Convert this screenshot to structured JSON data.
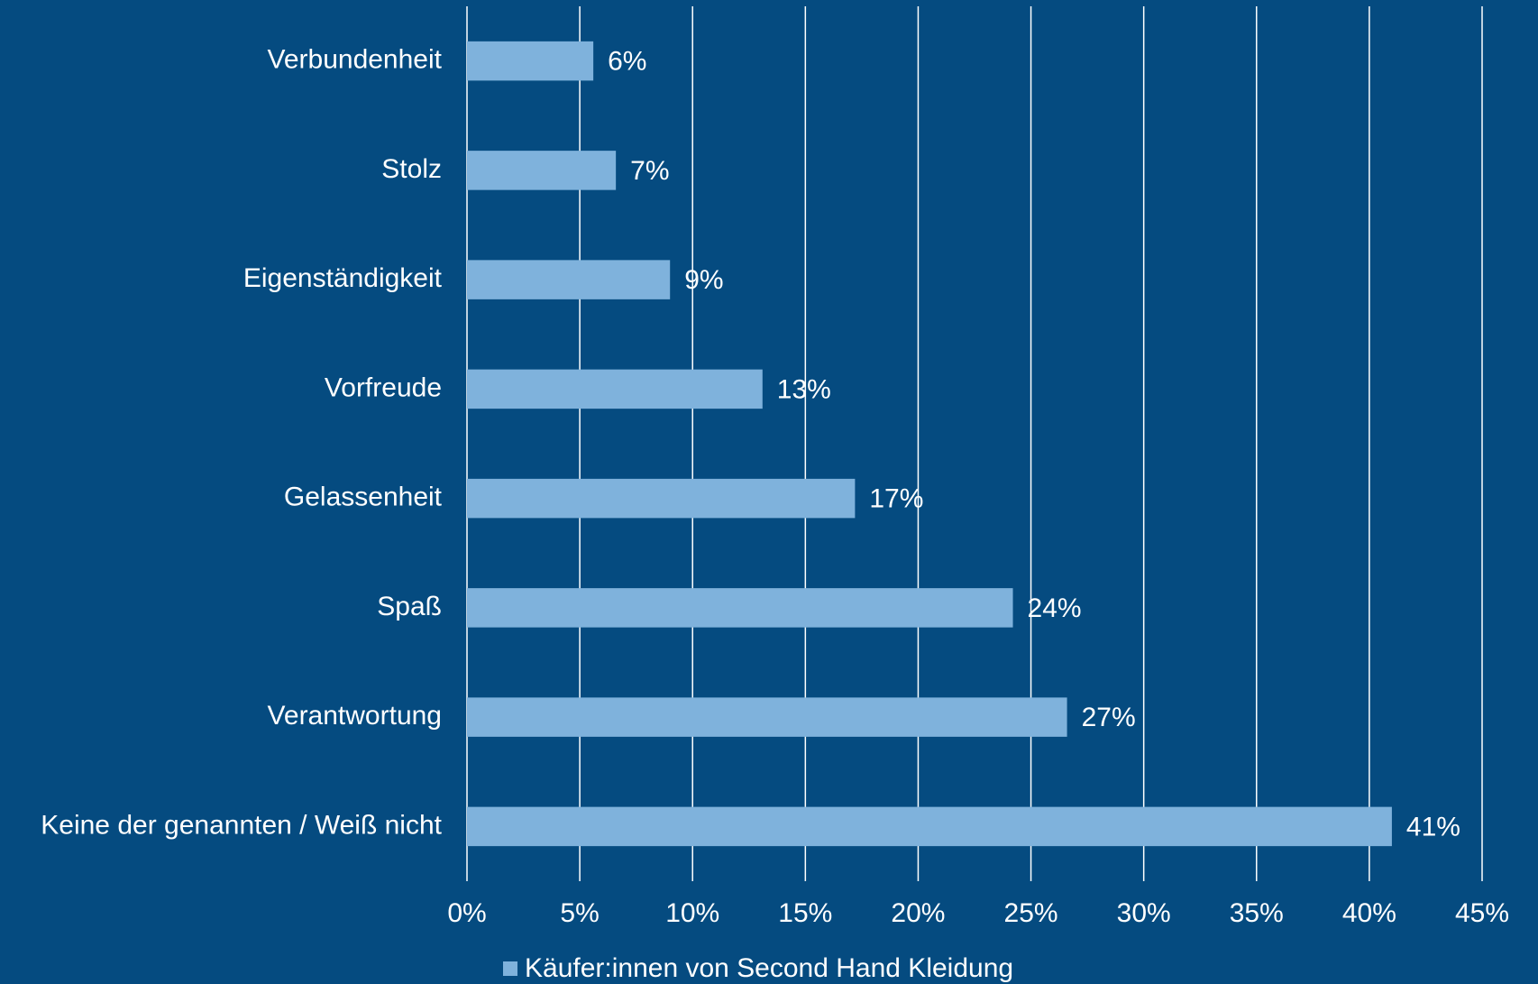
{
  "chart_data": {
    "type": "hbar",
    "categories": [
      "Verbundenheit",
      "Stolz",
      "Eigenständigkeit",
      "Vorfreude",
      "Gelassenheit",
      "Spaß",
      "Verantwortung",
      "Keine der genannten / Weiß nicht"
    ],
    "series": [
      {
        "name": "Käufer:innen von Second Hand Kleidung",
        "color": "#7fb2dc",
        "values": [
          5.6,
          6.6,
          9,
          13.1,
          17.2,
          24.2,
          26.6,
          41
        ],
        "value_labels": [
          "6%",
          "7%",
          "9%",
          "13%",
          "17%",
          "24%",
          "27%",
          "41%"
        ]
      }
    ],
    "xlim": [
      0,
      45
    ],
    "xticks": [
      {
        "value": 0,
        "label": "0%"
      },
      {
        "value": 5,
        "label": "5%"
      },
      {
        "value": 10,
        "label": "10%"
      },
      {
        "value": 15,
        "label": "15%"
      },
      {
        "value": 20,
        "label": "20%"
      },
      {
        "value": 25,
        "label": "25%"
      },
      {
        "value": 30,
        "label": "30%"
      },
      {
        "value": 35,
        "label": "35%"
      },
      {
        "value": 40,
        "label": "40%"
      },
      {
        "value": 45,
        "label": "45%"
      }
    ],
    "grid": true,
    "legend": "bottom",
    "background": "#054b80"
  }
}
